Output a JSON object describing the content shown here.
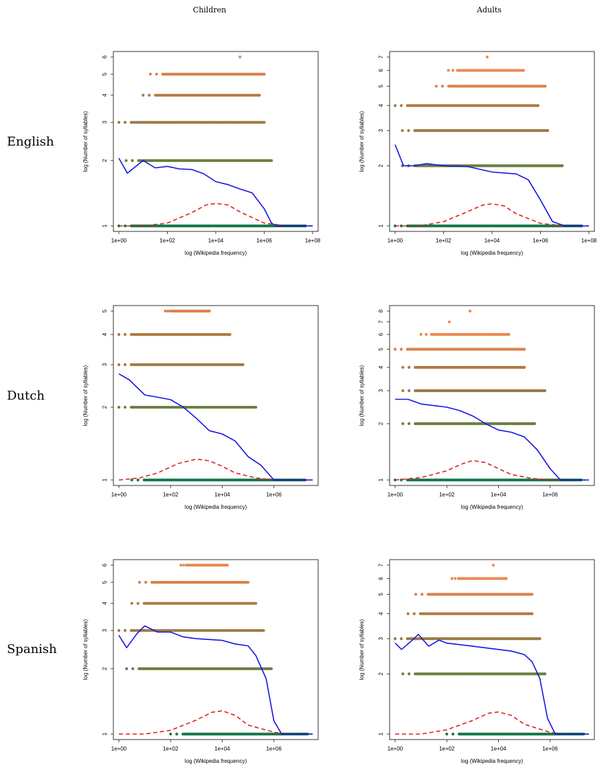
{
  "column_titles": [
    "Children",
    "Adults"
  ],
  "row_labels": [
    "English",
    "Dutch",
    "Spanish"
  ],
  "colors": {
    "points_1": "#1a7a4c",
    "points_2": "#6a7f3e",
    "points_3": "#9a7c44",
    "points_4": "#b07a40",
    "points_5": "#d8834a",
    "points_6": "#ea8a52",
    "points_7": "#ef8a55",
    "points_8": "#ef8a55",
    "loess": "#1515e0",
    "density": "#e02020"
  },
  "chart_data": [
    {
      "type": "scatter",
      "language": "English",
      "group": "Children",
      "xlabel": "log (Wikipedia frequency)",
      "ylabel": "log (Number of syllables)",
      "x_log_range": [
        0,
        8
      ],
      "ylim": [
        1,
        6
      ],
      "x_ticks": [
        "1e+00",
        "1e+02",
        "1e+04",
        "1e+06",
        "1e+08"
      ],
      "y_ticks": [
        "1",
        "2",
        "3",
        "4",
        "5",
        "6"
      ],
      "syllable_bands": [
        {
          "syllables": 1,
          "log_freq_range": [
            0,
            7.7
          ]
        },
        {
          "syllables": 2,
          "log_freq_range": [
            0.3,
            6.3
          ]
        },
        {
          "syllables": 3,
          "log_freq_range": [
            0,
            6.0
          ]
        },
        {
          "syllables": 4,
          "log_freq_range": [
            1.0,
            5.8
          ]
        },
        {
          "syllables": 5,
          "log_freq_range": [
            1.3,
            6.0
          ]
        },
        {
          "syllables": 6,
          "log_freq_range": [
            5.0,
            5.0
          ]
        }
      ],
      "loess_curve": [
        [
          0,
          2.05
        ],
        [
          0.35,
          1.75
        ],
        [
          1.0,
          2.0
        ],
        [
          1.5,
          1.85
        ],
        [
          2.0,
          1.88
        ],
        [
          2.5,
          1.83
        ],
        [
          3.0,
          1.82
        ],
        [
          3.5,
          1.74
        ],
        [
          4.0,
          1.6
        ],
        [
          4.5,
          1.55
        ],
        [
          5.0,
          1.48
        ],
        [
          5.5,
          1.42
        ],
        [
          6.0,
          1.2
        ],
        [
          6.3,
          1.03
        ],
        [
          6.5,
          1.0
        ],
        [
          8,
          1.0
        ]
      ],
      "density_curve": [
        [
          0,
          1.0
        ],
        [
          1,
          1.0
        ],
        [
          2,
          1.03
        ],
        [
          3,
          1.15
        ],
        [
          3.6,
          1.25
        ],
        [
          4,
          1.27
        ],
        [
          4.5,
          1.25
        ],
        [
          5,
          1.16
        ],
        [
          6,
          1.03
        ],
        [
          7,
          1.0
        ],
        [
          8,
          1.0
        ]
      ]
    },
    {
      "type": "scatter",
      "language": "English",
      "group": "Adults",
      "xlabel": "log (Wikipedia frequency)",
      "ylabel": "log (Number of syllables)",
      "x_log_range": [
        0,
        8
      ],
      "ylim": [
        1,
        7
      ],
      "x_ticks": [
        "1e+00",
        "1e+02",
        "1e+04",
        "1e+06",
        "1e+08"
      ],
      "y_ticks": [
        "1",
        "2",
        "3",
        "4",
        "5",
        "6",
        "7"
      ],
      "syllable_bands": [
        {
          "syllables": 1,
          "log_freq_range": [
            0,
            7.7
          ]
        },
        {
          "syllables": 2,
          "log_freq_range": [
            0.3,
            6.9
          ]
        },
        {
          "syllables": 3,
          "log_freq_range": [
            0.3,
            6.3
          ]
        },
        {
          "syllables": 4,
          "log_freq_range": [
            0,
            5.9
          ]
        },
        {
          "syllables": 5,
          "log_freq_range": [
            1.7,
            6.2
          ]
        },
        {
          "syllables": 6,
          "log_freq_range": [
            2.2,
            5.3
          ]
        },
        {
          "syllables": 7,
          "log_freq_range": [
            3.8,
            3.8
          ]
        }
      ],
      "loess_curve": [
        [
          0,
          2.55
        ],
        [
          0.35,
          2.0
        ],
        [
          0.8,
          2.0
        ],
        [
          1.3,
          2.05
        ],
        [
          2.0,
          2.0
        ],
        [
          3.0,
          1.98
        ],
        [
          4.0,
          1.86
        ],
        [
          5.0,
          1.82
        ],
        [
          5.5,
          1.7
        ],
        [
          6.0,
          1.35
        ],
        [
          6.5,
          1.05
        ],
        [
          7.0,
          1.0
        ],
        [
          8,
          1.0
        ]
      ],
      "density_curve": [
        [
          0,
          1.0
        ],
        [
          1,
          1.0
        ],
        [
          2,
          1.05
        ],
        [
          3,
          1.18
        ],
        [
          3.6,
          1.27
        ],
        [
          4,
          1.29
        ],
        [
          4.5,
          1.26
        ],
        [
          5,
          1.15
        ],
        [
          6,
          1.03
        ],
        [
          7,
          1.0
        ],
        [
          8,
          1.0
        ]
      ]
    },
    {
      "type": "scatter",
      "language": "Dutch",
      "group": "Children",
      "xlabel": "log (Wikipedia frequency)",
      "ylabel": "log (Number of syllables)",
      "x_log_range": [
        0,
        7.5
      ],
      "ylim": [
        1,
        5
      ],
      "x_ticks": [
        "1e+00",
        "1e+02",
        "1e+04",
        "1e+06"
      ],
      "y_ticks": [
        "1",
        "2",
        "3",
        "4",
        "5"
      ],
      "syllable_bands": [
        {
          "syllables": 1,
          "log_freq_range": [
            0.5,
            7.2
          ]
        },
        {
          "syllables": 2,
          "log_freq_range": [
            0,
            5.3
          ]
        },
        {
          "syllables": 3,
          "log_freq_range": [
            0,
            4.8
          ]
        },
        {
          "syllables": 4,
          "log_freq_range": [
            0,
            4.3
          ]
        },
        {
          "syllables": 5,
          "log_freq_range": [
            1.8,
            3.5
          ]
        }
      ],
      "loess_curve": [
        [
          0,
          2.75
        ],
        [
          0.4,
          2.6
        ],
        [
          1.0,
          2.25
        ],
        [
          1.5,
          2.2
        ],
        [
          2.0,
          2.15
        ],
        [
          2.5,
          2.0
        ],
        [
          3.0,
          1.8
        ],
        [
          3.5,
          1.6
        ],
        [
          4.0,
          1.55
        ],
        [
          4.5,
          1.45
        ],
        [
          5.0,
          1.25
        ],
        [
          5.5,
          1.15
        ],
        [
          6.0,
          1.0
        ],
        [
          7.5,
          1.0
        ]
      ],
      "density_curve": [
        [
          0,
          1.0
        ],
        [
          0.8,
          1.02
        ],
        [
          1.5,
          1.07
        ],
        [
          2.3,
          1.17
        ],
        [
          3,
          1.22
        ],
        [
          3.5,
          1.2
        ],
        [
          4,
          1.14
        ],
        [
          4.5,
          1.07
        ],
        [
          5.3,
          1.02
        ],
        [
          6,
          1.0
        ],
        [
          7.5,
          1.0
        ]
      ]
    },
    {
      "type": "scatter",
      "language": "Dutch",
      "group": "Adults",
      "xlabel": "log (Wikipedia frequency)",
      "ylabel": "log (Number of syllables)",
      "x_log_range": [
        0,
        7.5
      ],
      "ylim": [
        1,
        8
      ],
      "x_ticks": [
        "1e+00",
        "1e+02",
        "1e+04",
        "1e+06"
      ],
      "y_ticks": [
        "1",
        "2",
        "3",
        "4",
        "5",
        "6",
        "7",
        "8"
      ],
      "syllable_bands": [
        {
          "syllables": 1,
          "log_freq_range": [
            0,
            7.2
          ]
        },
        {
          "syllables": 2,
          "log_freq_range": [
            0.3,
            5.4
          ]
        },
        {
          "syllables": 3,
          "log_freq_range": [
            0.3,
            5.8
          ]
        },
        {
          "syllables": 4,
          "log_freq_range": [
            0.3,
            5.0
          ]
        },
        {
          "syllables": 5,
          "log_freq_range": [
            0,
            5.0
          ]
        },
        {
          "syllables": 6,
          "log_freq_range": [
            1.0,
            4.4
          ]
        },
        {
          "syllables": 7,
          "log_freq_range": [
            2.1,
            2.1
          ]
        },
        {
          "syllables": 8,
          "log_freq_range": [
            2.9,
            2.9
          ]
        }
      ],
      "loess_curve": [
        [
          0,
          2.7
        ],
        [
          0.5,
          2.7
        ],
        [
          1.0,
          2.55
        ],
        [
          2.0,
          2.45
        ],
        [
          2.5,
          2.35
        ],
        [
          3.0,
          2.2
        ],
        [
          3.5,
          2.0
        ],
        [
          4.0,
          1.85
        ],
        [
          4.5,
          1.8
        ],
        [
          5.0,
          1.7
        ],
        [
          5.5,
          1.45
        ],
        [
          6.0,
          1.15
        ],
        [
          6.4,
          1.0
        ],
        [
          7.5,
          1.0
        ]
      ],
      "density_curve": [
        [
          0,
          1.0
        ],
        [
          1,
          1.03
        ],
        [
          2,
          1.12
        ],
        [
          2.6,
          1.22
        ],
        [
          3,
          1.27
        ],
        [
          3.5,
          1.24
        ],
        [
          4,
          1.15
        ],
        [
          4.5,
          1.07
        ],
        [
          5.3,
          1.02
        ],
        [
          6,
          1.0
        ],
        [
          7.5,
          1.0
        ]
      ]
    },
    {
      "type": "scatter",
      "language": "Spanish",
      "group": "Children",
      "xlabel": "log (Wikipedia frequency)",
      "ylabel": "log (Number of syllables)",
      "x_log_range": [
        0,
        7.5
      ],
      "ylim": [
        1,
        6
      ],
      "x_ticks": [
        "1e+00",
        "1e+02",
        "1e+04",
        "1e+06"
      ],
      "y_ticks": [
        "1",
        "2",
        "3",
        "4",
        "5",
        "6"
      ],
      "syllable_bands": [
        {
          "syllables": 1,
          "log_freq_range": [
            2.0,
            7.3
          ]
        },
        {
          "syllables": 2,
          "log_freq_range": [
            0.3,
            5.9
          ]
        },
        {
          "syllables": 3,
          "log_freq_range": [
            0,
            5.6
          ]
        },
        {
          "syllables": 4,
          "log_freq_range": [
            0.5,
            5.3
          ]
        },
        {
          "syllables": 5,
          "log_freq_range": [
            0.8,
            5.0
          ]
        },
        {
          "syllables": 6,
          "log_freq_range": [
            2.4,
            4.2
          ]
        }
      ],
      "loess_curve": [
        [
          0,
          2.85
        ],
        [
          0.3,
          2.5
        ],
        [
          0.7,
          2.9
        ],
        [
          1.0,
          3.15
        ],
        [
          1.5,
          2.95
        ],
        [
          2.0,
          2.95
        ],
        [
          2.5,
          2.8
        ],
        [
          3.0,
          2.75
        ],
        [
          4.0,
          2.7
        ],
        [
          4.5,
          2.6
        ],
        [
          5.0,
          2.55
        ],
        [
          5.3,
          2.3
        ],
        [
          5.7,
          1.8
        ],
        [
          6.0,
          1.15
        ],
        [
          6.3,
          1.0
        ],
        [
          7.5,
          1.0
        ]
      ],
      "density_curve": [
        [
          0,
          1.0
        ],
        [
          1,
          1.0
        ],
        [
          2,
          1.04
        ],
        [
          3,
          1.16
        ],
        [
          3.6,
          1.26
        ],
        [
          4,
          1.28
        ],
        [
          4.5,
          1.22
        ],
        [
          5,
          1.1
        ],
        [
          6,
          1.02
        ],
        [
          6.5,
          1.0
        ],
        [
          7.5,
          1.0
        ]
      ]
    },
    {
      "type": "scatter",
      "language": "Spanish",
      "group": "Adults",
      "xlabel": "log (Wikipedia frequency)",
      "ylabel": "log (Number of syllables)",
      "x_log_range": [
        0,
        7.5
      ],
      "ylim": [
        1,
        7
      ],
      "x_ticks": [
        "1e+00",
        "1e+02",
        "1e+04",
        "1e+06"
      ],
      "y_ticks": [
        "1",
        "2",
        "3",
        "4",
        "5",
        "6",
        "7"
      ],
      "syllable_bands": [
        {
          "syllables": 1,
          "log_freq_range": [
            2.0,
            7.3
          ]
        },
        {
          "syllables": 2,
          "log_freq_range": [
            0.3,
            5.8
          ]
        },
        {
          "syllables": 3,
          "log_freq_range": [
            0,
            5.6
          ]
        },
        {
          "syllables": 4,
          "log_freq_range": [
            0.5,
            5.3
          ]
        },
        {
          "syllables": 5,
          "log_freq_range": [
            0.8,
            5.3
          ]
        },
        {
          "syllables": 6,
          "log_freq_range": [
            2.2,
            4.3
          ]
        },
        {
          "syllables": 7,
          "log_freq_range": [
            3.8,
            3.8
          ]
        }
      ],
      "loess_curve": [
        [
          0,
          2.85
        ],
        [
          0.25,
          2.65
        ],
        [
          0.6,
          2.9
        ],
        [
          0.9,
          3.15
        ],
        [
          1.3,
          2.75
        ],
        [
          1.7,
          2.95
        ],
        [
          2.0,
          2.85
        ],
        [
          2.5,
          2.8
        ],
        [
          3.0,
          2.75
        ],
        [
          3.5,
          2.7
        ],
        [
          4.0,
          2.65
        ],
        [
          4.5,
          2.6
        ],
        [
          5.0,
          2.5
        ],
        [
          5.3,
          2.3
        ],
        [
          5.6,
          1.9
        ],
        [
          5.9,
          1.2
        ],
        [
          6.2,
          1.0
        ],
        [
          7.5,
          1.0
        ]
      ],
      "density_curve": [
        [
          0,
          1.0
        ],
        [
          1,
          1.0
        ],
        [
          2,
          1.05
        ],
        [
          3,
          1.17
        ],
        [
          3.6,
          1.27
        ],
        [
          4,
          1.29
        ],
        [
          4.5,
          1.24
        ],
        [
          5,
          1.12
        ],
        [
          6,
          1.02
        ],
        [
          6.5,
          1.0
        ],
        [
          7.5,
          1.0
        ]
      ]
    }
  ]
}
